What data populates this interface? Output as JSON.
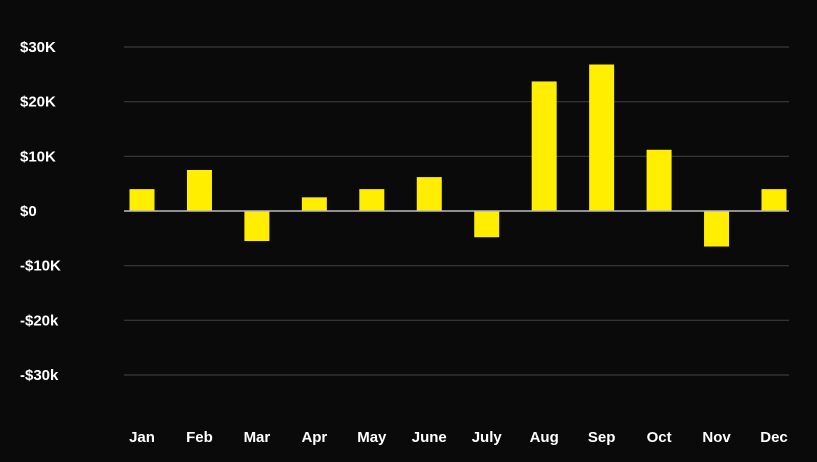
{
  "chart_data": {
    "type": "bar",
    "categories": [
      "Jan",
      "Feb",
      "Mar",
      "Apr",
      "May",
      "June",
      "July",
      "Aug",
      "Sep",
      "Oct",
      "Nov",
      "Dec"
    ],
    "values": [
      4000,
      7500,
      -5500,
      2500,
      4000,
      6200,
      -4800,
      23700,
      26800,
      11200,
      -6500,
      4000
    ],
    "ylim": [
      -30000,
      30000
    ],
    "ytick_values": [
      30000,
      20000,
      10000,
      0,
      -10000,
      -20000,
      -30000
    ],
    "ytick_labels": [
      "$30K",
      "$20K",
      "$10K",
      "$0",
      "-$10K",
      "-$20k",
      "-$30k"
    ],
    "grid": true,
    "title": "",
    "xlabel": "",
    "ylabel": ""
  },
  "colors": {
    "background": "#0a0a0a",
    "bar": "#ffee00",
    "gridline": "#3a3a3a",
    "zero_line": "#bbbbbb",
    "text": "#ffffff"
  }
}
